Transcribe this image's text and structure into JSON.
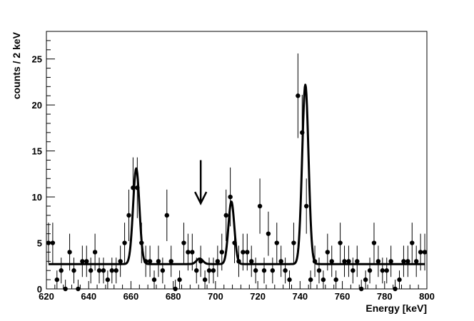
{
  "chart_data": {
    "type": "scatter",
    "title": "",
    "xlabel": "Energy [keV]",
    "ylabel": "counts / 2 keV",
    "xlim": [
      620,
      800
    ],
    "ylim": [
      0,
      28
    ],
    "xticks": [
      620,
      640,
      660,
      680,
      700,
      720,
      740,
      760,
      780,
      800
    ],
    "yticks": [
      0,
      5,
      10,
      15,
      20,
      25
    ],
    "grid": false,
    "legend": "none",
    "colors": {
      "points": "#000000",
      "fit": "#000000",
      "axes": "#000000"
    },
    "series": [
      {
        "kind": "points-with-error-bars",
        "x": [
          621,
          623,
          625,
          627,
          629,
          631,
          633,
          635,
          637,
          639,
          641,
          643,
          645,
          647,
          649,
          651,
          653,
          655,
          657,
          659,
          661,
          663,
          665,
          667,
          669,
          671,
          673,
          675,
          677,
          679,
          681,
          683,
          685,
          687,
          689,
          691,
          693,
          695,
          697,
          699,
          701,
          703,
          705,
          707,
          709,
          711,
          713,
          715,
          717,
          719,
          721,
          723,
          725,
          727,
          729,
          731,
          733,
          735,
          737,
          739,
          741,
          743,
          745,
          747,
          749,
          751,
          753,
          755,
          757,
          759,
          761,
          763,
          765,
          767,
          769,
          771,
          773,
          775,
          777,
          779,
          781,
          783,
          785,
          787,
          789,
          791,
          793,
          795,
          797,
          799
        ],
        "y": [
          5,
          5,
          1,
          2,
          0,
          4,
          2,
          0,
          3,
          3,
          2,
          4,
          2,
          2,
          1,
          2,
          2,
          3,
          5,
          8,
          11,
          11,
          5,
          3,
          3,
          1,
          3,
          2,
          8,
          3,
          0,
          1,
          5,
          4,
          4,
          2,
          3,
          1,
          2,
          2,
          3,
          4,
          8,
          10,
          5,
          3,
          4,
          4,
          3,
          2,
          9,
          2,
          6,
          2,
          5,
          3,
          2,
          1,
          5,
          21,
          17,
          9,
          1,
          3,
          2,
          1,
          4,
          3,
          1,
          5,
          3,
          3,
          2,
          3,
          0,
          1,
          2,
          5,
          3,
          2,
          2,
          3,
          0,
          1,
          3,
          3,
          5,
          3,
          4,
          4
        ],
        "yerr": [
          2.2,
          2.2,
          1.0,
          1.4,
          1.0,
          2.0,
          1.4,
          1.0,
          1.7,
          1.7,
          1.4,
          2.0,
          1.4,
          1.4,
          1.0,
          1.4,
          1.4,
          1.7,
          2.2,
          2.8,
          3.3,
          3.3,
          2.2,
          1.7,
          1.7,
          1.0,
          1.7,
          1.4,
          2.8,
          1.7,
          1.0,
          1.0,
          2.2,
          2.0,
          2.0,
          1.4,
          1.7,
          1.0,
          1.4,
          1.4,
          1.7,
          2.0,
          2.8,
          3.2,
          2.2,
          1.7,
          2.0,
          2.0,
          1.7,
          1.4,
          3.0,
          1.4,
          2.4,
          1.4,
          2.2,
          1.7,
          1.4,
          1.0,
          2.2,
          4.6,
          4.1,
          3.0,
          1.0,
          1.7,
          1.4,
          1.0,
          2.0,
          1.7,
          1.0,
          2.2,
          1.7,
          1.7,
          1.4,
          1.7,
          1.0,
          1.0,
          1.4,
          2.2,
          1.7,
          1.4,
          1.4,
          1.7,
          1.0,
          1.0,
          1.7,
          1.7,
          2.2,
          1.7,
          2.0,
          2.0
        ]
      },
      {
        "kind": "fit-curve",
        "baseline": 2.7,
        "peaks": [
          {
            "center": 662.5,
            "amplitude": 10.4,
            "sigma": 1.5
          },
          {
            "center": 692.5,
            "amplitude": 0.6,
            "sigma": 1.5
          },
          {
            "center": 707.5,
            "amplitude": 6.8,
            "sigma": 1.4
          },
          {
            "center": 742.5,
            "amplitude": 19.5,
            "sigma": 1.5
          }
        ]
      }
    ],
    "annotations": [
      {
        "type": "arrow-down",
        "x": 693,
        "y_from": 14,
        "y_to": 9.3
      }
    ]
  }
}
